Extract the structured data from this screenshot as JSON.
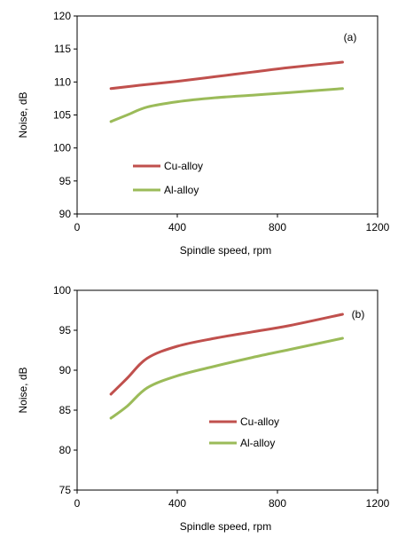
{
  "chart_data": [
    {
      "type": "line",
      "panel_label": "(a)",
      "xlabel": "Spindle speed, rpm",
      "ylabel": "Noise, dB",
      "xlim": [
        0,
        1200
      ],
      "ylim": [
        90,
        120
      ],
      "xticks": [
        0,
        400,
        800,
        1200
      ],
      "yticks": [
        90,
        95,
        100,
        105,
        110,
        115,
        120
      ],
      "legend_position": "lower-left",
      "grid": false,
      "series": [
        {
          "name": "Cu-alloy",
          "color": "#C0504D",
          "x": [
            135,
            250,
            400,
            550,
            700,
            850,
            1060
          ],
          "y": [
            109.0,
            109.5,
            110.1,
            110.8,
            111.5,
            112.2,
            113.0
          ]
        },
        {
          "name": "Al-alloy",
          "color": "#9BBB59",
          "x": [
            135,
            200,
            280,
            400,
            550,
            700,
            850,
            1060
          ],
          "y": [
            104.0,
            105.0,
            106.2,
            107.0,
            107.6,
            108.0,
            108.4,
            109.0
          ]
        }
      ]
    },
    {
      "type": "line",
      "panel_label": "(b)",
      "xlabel": "Spindle speed, rpm",
      "ylabel": "Noise, dB",
      "xlim": [
        0,
        1200
      ],
      "ylim": [
        75,
        100
      ],
      "xticks": [
        0,
        400,
        800,
        1200
      ],
      "yticks": [
        75,
        80,
        85,
        90,
        95,
        100
      ],
      "legend_position": "center",
      "grid": false,
      "series": [
        {
          "name": "Cu-alloy",
          "color": "#C0504D",
          "x": [
            135,
            200,
            280,
            400,
            550,
            700,
            850,
            1060
          ],
          "y": [
            87.0,
            89.0,
            91.5,
            93.0,
            94.0,
            94.8,
            95.6,
            97.0
          ]
        },
        {
          "name": "Al-alloy",
          "color": "#9BBB59",
          "x": [
            135,
            200,
            280,
            400,
            550,
            700,
            850,
            1060
          ],
          "y": [
            84.0,
            85.5,
            87.8,
            89.3,
            90.5,
            91.6,
            92.6,
            94.0
          ]
        }
      ]
    }
  ]
}
